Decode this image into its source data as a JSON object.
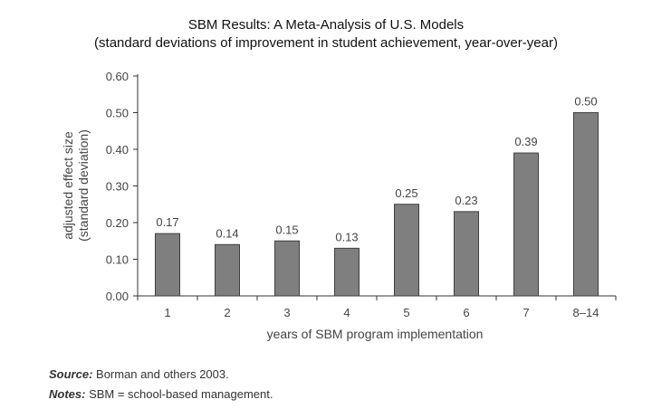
{
  "chart_data": {
    "type": "bar",
    "title": "SBM Results: A Meta-Analysis of U.S. Models",
    "subtitle": "(standard deviations of improvement in student achievement, year-over-year)",
    "categories": [
      "1",
      "2",
      "3",
      "4",
      "5",
      "6",
      "7",
      "8–14"
    ],
    "values": [
      0.17,
      0.14,
      0.15,
      0.13,
      0.25,
      0.23,
      0.39,
      0.5
    ],
    "value_labels": [
      "0.17",
      "0.14",
      "0.15",
      "0.13",
      "0.25",
      "0.23",
      "0.39",
      "0.50"
    ],
    "xlabel": "years of SBM program implementation",
    "ylabel_line1": "adjusted effect size",
    "ylabel_line2": "(standard deviation)",
    "ylim": [
      0,
      0.6
    ],
    "yticks": [
      "0.00",
      "0.10",
      "0.20",
      "0.30",
      "0.40",
      "0.50",
      "0.60"
    ],
    "grid": false,
    "colors": {
      "bar": "#7f7f7f",
      "bar_stroke": "#3f3f3f",
      "axis": "#333333"
    }
  },
  "notes": {
    "source_label": "Source:",
    "source_text": " Borman and others 2003.",
    "notes_label": "Notes:",
    "notes_text": " SBM = school-based management."
  }
}
